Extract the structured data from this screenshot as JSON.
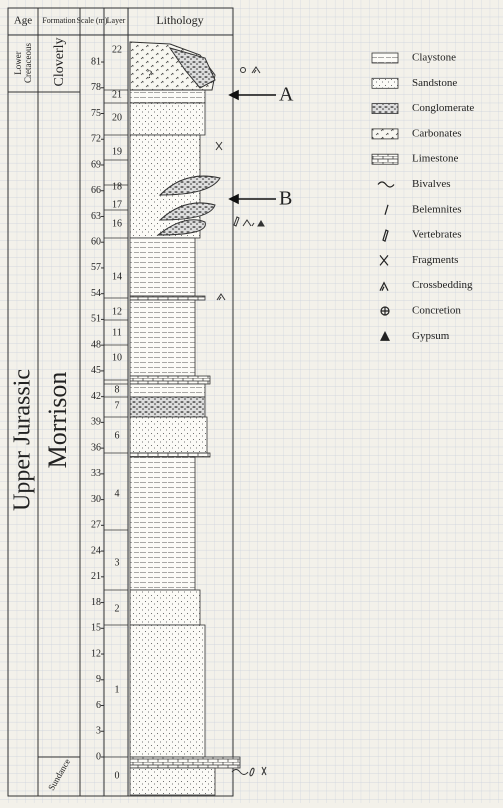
{
  "header": {
    "age": "Age",
    "formation": "Formation",
    "scale": "Scale (m)",
    "layer": "Layer",
    "lithology": "Lithology"
  },
  "ages": {
    "top": [
      "Lower",
      "Cretaceous"
    ],
    "main": "Upper Jurassic"
  },
  "formations": [
    "Cloverly",
    "Morrison",
    "Sundance"
  ],
  "scale": {
    "ticks": [
      81,
      78,
      75,
      72,
      69,
      66,
      63,
      60,
      57,
      54,
      51,
      48,
      45,
      42,
      39,
      36,
      33,
      30,
      27,
      24,
      21,
      18,
      15,
      12,
      9,
      6,
      3,
      0
    ]
  },
  "layers": [
    "22",
    "21",
    "20",
    "19",
    "18",
    "17",
    "16",
    "14",
    "12",
    "11",
    "10",
    "8",
    "7",
    "6",
    "4",
    "3",
    "2",
    "1",
    "0"
  ],
  "column_note": "?",
  "annotations": [
    "A",
    "B"
  ],
  "legend": [
    "Claystone",
    "Sandstone",
    "Conglomerate",
    "Carbonates",
    "Limestone",
    "Bivalves",
    "Belemnites",
    "Vertebrates",
    "Fragments",
    "Crossbedding",
    "Concretion",
    "Gypsum"
  ]
}
